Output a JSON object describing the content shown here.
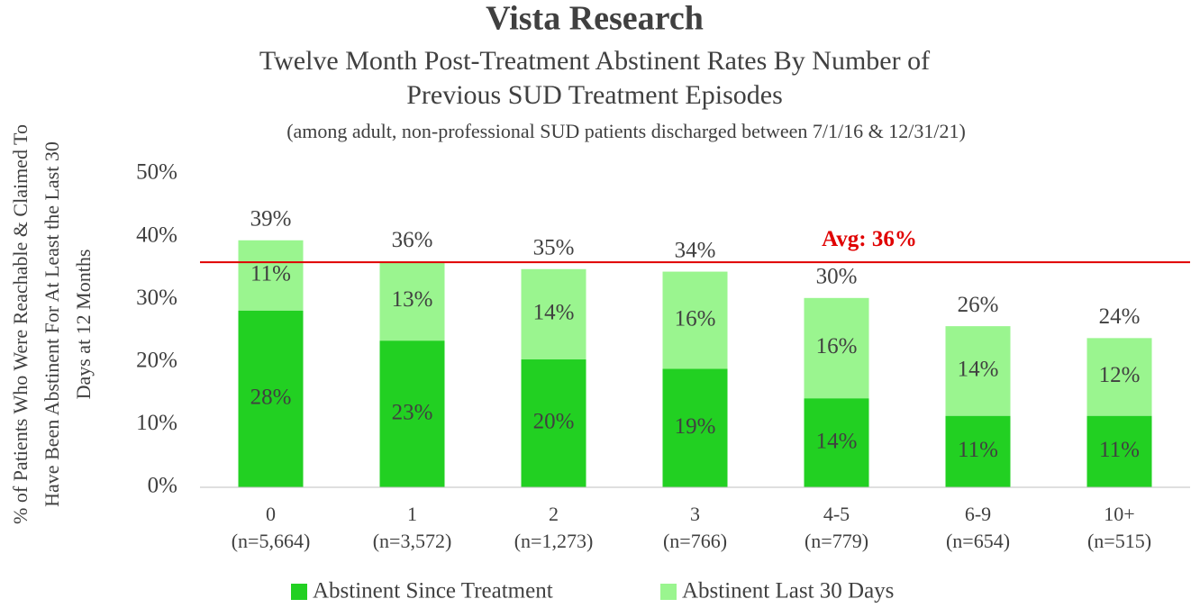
{
  "chart_data": {
    "type": "stacked_bar",
    "title": "Vista Research",
    "subtitle": [
      "Twelve Month Post-Treatment Abstinent Rates By Number of",
      "Previous SUD Treatment Episodes"
    ],
    "note": "(among adult, non-professional SUD patients discharged between 7/1/16 & 12/31/21)",
    "ylabel": [
      "% of Patients Who Were Reachable & Claimed To",
      "Have Been Abstinent For At Least the Last 30",
      "Days at 12 Months"
    ],
    "categories": [
      [
        "0",
        "(n=5,664)"
      ],
      [
        "1",
        "(n=3,572)"
      ],
      [
        "2",
        "(n=1,273)"
      ],
      [
        "3",
        "(n=766)"
      ],
      [
        "4-5",
        "(n=779)"
      ],
      [
        "6-9",
        "(n=654)"
      ],
      [
        "10+",
        "(n=515)"
      ]
    ],
    "series": [
      {
        "name": "Abstinent Since Treatment",
        "color": "#22d022",
        "values": [
          28.2,
          23.4,
          20.4,
          18.9,
          14.2,
          11.4,
          11.4
        ],
        "value_labels": [
          "28%",
          "23%",
          "20%",
          "19%",
          "14%",
          "11%",
          "11%"
        ]
      },
      {
        "name": "Abstinent Last 30 Days",
        "color": "#9af58f",
        "values": [
          11.2,
          12.6,
          14.4,
          15.5,
          16.0,
          14.3,
          12.4
        ],
        "value_labels": [
          "11%",
          "13%",
          "14%",
          "16%",
          "16%",
          "14%",
          "12%"
        ]
      }
    ],
    "total_labels": [
      "39%",
      "36%",
      "35%",
      "34%",
      "30%",
      "26%",
      "24%"
    ],
    "reference_line": {
      "value": 35.9,
      "label": "Avg: 36%",
      "color": "#e00000"
    },
    "ylim": [
      0,
      50
    ],
    "yticks": [
      {
        "value": 0,
        "label": "0%"
      },
      {
        "value": 10,
        "label": "10%"
      },
      {
        "value": 20,
        "label": "20%"
      },
      {
        "value": 30,
        "label": "30%"
      },
      {
        "value": 40,
        "label": "40%"
      },
      {
        "value": 50,
        "label": "50%"
      }
    ],
    "grid": false,
    "legend": "bottom"
  }
}
